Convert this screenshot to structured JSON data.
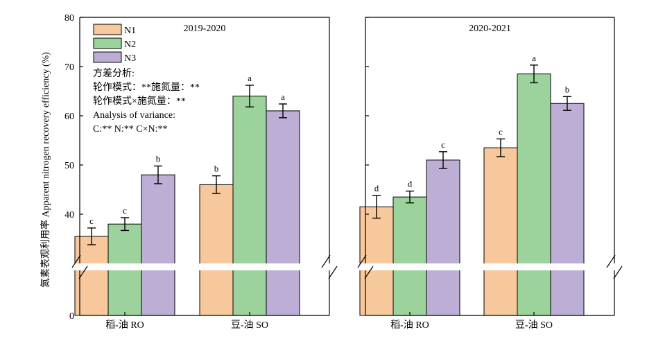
{
  "ylabel": "氮素表观利用率 Apparent nitrogen recovery efficiency (%)",
  "legend": [
    {
      "name": "N1",
      "color": "#f7c89b"
    },
    {
      "name": "N2",
      "color": "#9cd39c"
    },
    {
      "name": "N3",
      "color": "#bcaed5"
    }
  ],
  "annotation_lines": [
    "方差分析:",
    "轮作模式：**施氮量：**",
    "轮作模式×施氮量：**",
    "Analysis of variance:",
    "C:** N:** C×N:**"
  ],
  "chart_data": [
    {
      "type": "bar",
      "title": "2019-2020",
      "categories": [
        "稻-油 RO",
        "豆-油 SO"
      ],
      "series": [
        {
          "name": "N1",
          "values": [
            35.5,
            46.0
          ],
          "errors": [
            1.7,
            1.8
          ]
        },
        {
          "name": "N2",
          "values": [
            38.0,
            64.0
          ],
          "errors": [
            1.3,
            2.2
          ]
        },
        {
          "name": "N3",
          "values": [
            48.0,
            61.0
          ],
          "errors": [
            1.8,
            1.4
          ]
        }
      ],
      "significance": [
        [
          "c",
          "c",
          "b"
        ],
        [
          "b",
          "a",
          "a"
        ]
      ],
      "yticks": [
        0,
        40,
        50,
        60,
        70,
        80
      ],
      "axis_break": true,
      "ylim": [
        0,
        80
      ],
      "legend_position": "top-left"
    },
    {
      "type": "bar",
      "title": "2020-2021",
      "categories": [
        "稻-油 RO",
        "豆-油 SO"
      ],
      "series": [
        {
          "name": "N1",
          "values": [
            41.5,
            53.5
          ],
          "errors": [
            2.3,
            1.8
          ]
        },
        {
          "name": "N2",
          "values": [
            43.5,
            68.5
          ],
          "errors": [
            1.2,
            1.8
          ]
        },
        {
          "name": "N3",
          "values": [
            51.0,
            62.5
          ],
          "errors": [
            1.7,
            1.4
          ]
        }
      ],
      "significance": [
        [
          "d",
          "d",
          "c"
        ],
        [
          "c",
          "a",
          "b"
        ]
      ],
      "axis_break": true,
      "ylim": [
        0,
        80
      ]
    }
  ]
}
